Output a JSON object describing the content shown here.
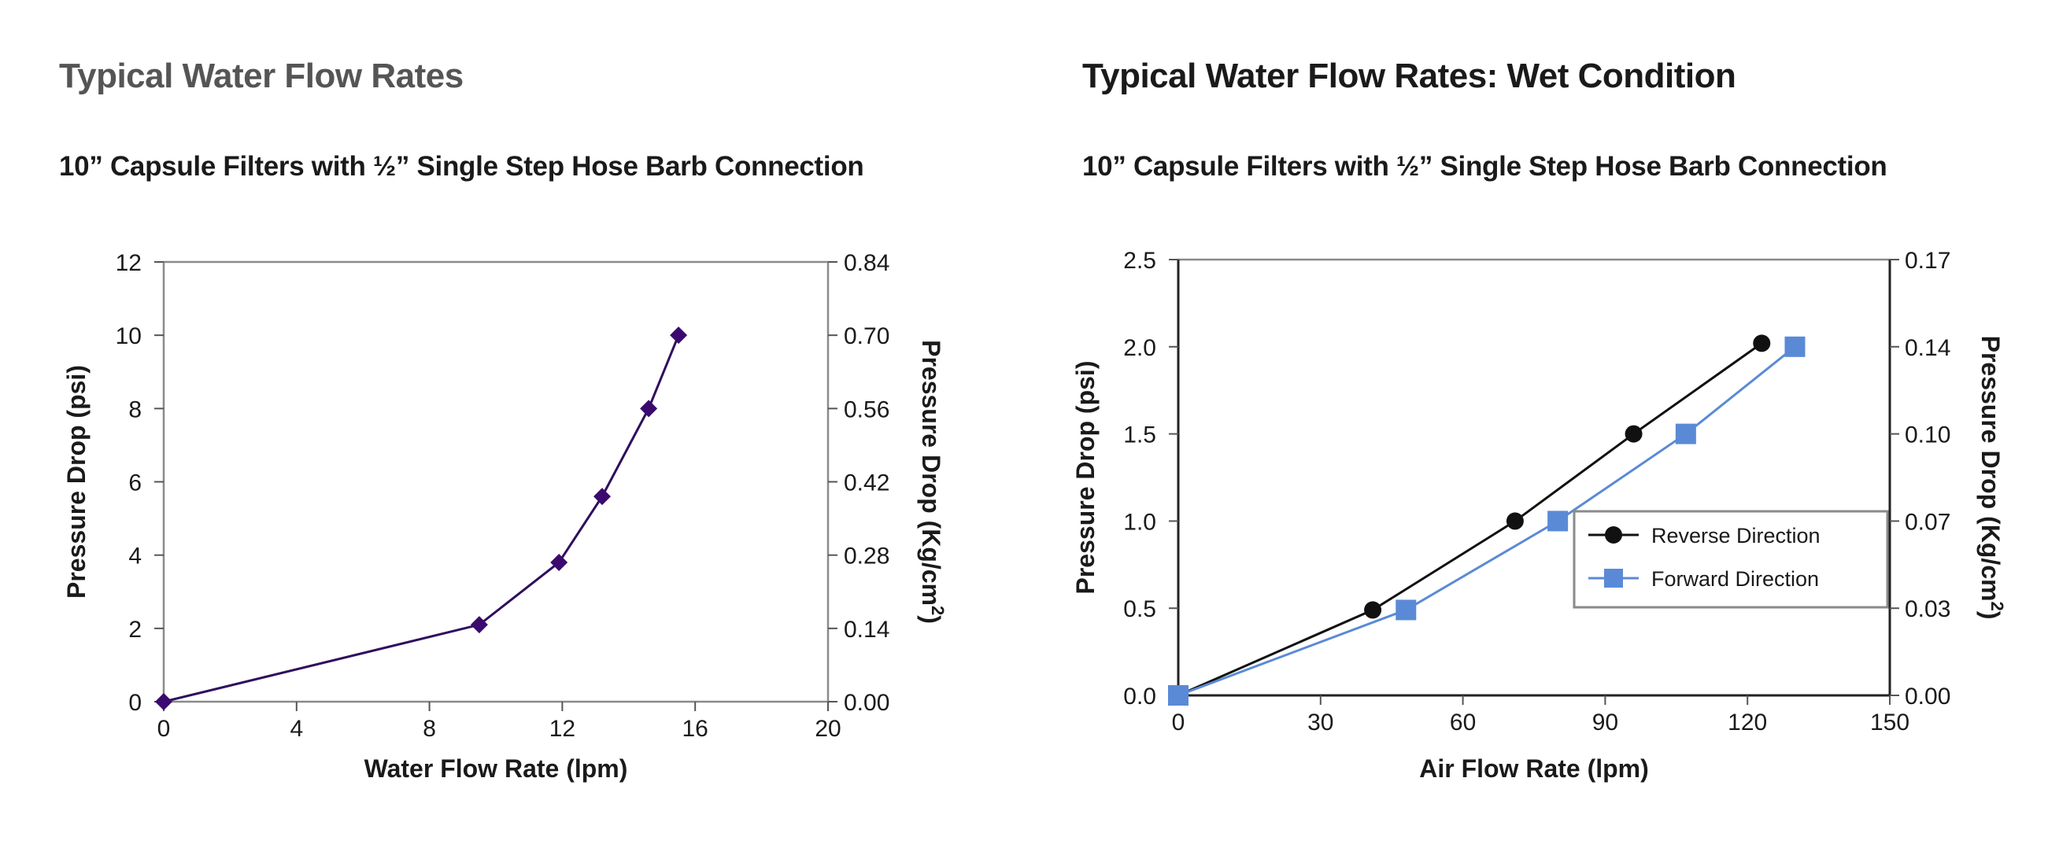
{
  "chart_data": [
    {
      "type": "line",
      "title": "Typical Water Flow Rates",
      "subtitle": "10” Capsule Filters with ½” Single Step Hose Barb Connection",
      "xlabel": "Water Flow Rate (lpm)",
      "ylabel": "Pressure Drop  (psi)",
      "y2label": "Pressure Drop (Kg/cm²)",
      "y2label_base": "Pressure Drop (Kg/cm",
      "y2label_sup": "2",
      "y2label_end": ")",
      "xlim": [
        0,
        20
      ],
      "ylim": [
        0,
        12
      ],
      "xticks": [
        "0",
        "4",
        "8",
        "12",
        "16",
        "20"
      ],
      "yticks": [
        "0",
        "2",
        "4",
        "6",
        "8",
        "10",
        "12"
      ],
      "y2ticks": [
        "0.00",
        "0.14",
        "0.28",
        "0.42",
        "0.56",
        "0.70",
        "0.84"
      ],
      "grid": false,
      "colors": {
        "line": "#2e0e5e",
        "marker": "#3b0a6e"
      },
      "series": [
        {
          "marker": "diamond",
          "x": [
            0,
            9.5,
            11.9,
            13.2,
            14.6,
            15.5
          ],
          "y": [
            0,
            2.1,
            3.8,
            5.6,
            8.0,
            10.0
          ]
        }
      ]
    },
    {
      "type": "line",
      "title": "Typical Water Flow Rates: Wet Condition",
      "subtitle": "10” Capsule Filters with ½” Single Step Hose Barb Connection",
      "xlabel": "Air Flow Rate (lpm)",
      "ylabel": "Pressure Drop (psi)",
      "y2label": "Pressure Drop (Kg/cm²)",
      "y2label_base": "Pressure Drop (Kg/cm",
      "y2label_sup": "2",
      "y2label_end": ")",
      "xlim": [
        0,
        150
      ],
      "ylim": [
        0,
        2.5
      ],
      "xticks": [
        "0",
        "30",
        "60",
        "90",
        "120",
        "150"
      ],
      "yticks": [
        "0.0",
        "0.5",
        "1.0",
        "1.5",
        "2.0",
        "2.5"
      ],
      "y2ticks": [
        "0.00",
        "0.03",
        "0.07",
        "0.10",
        "0.14",
        "0.17"
      ],
      "grid": false,
      "legend": "center-right",
      "series": [
        {
          "name": "Reverse Direction",
          "marker": "circle",
          "color": "#111111",
          "x": [
            0,
            41,
            71,
            96,
            123
          ],
          "y": [
            0,
            0.49,
            1.0,
            1.5,
            2.02
          ]
        },
        {
          "name": "Forward Direction",
          "marker": "square",
          "color": "#5a8ad6",
          "x": [
            0,
            48,
            80,
            107,
            130
          ],
          "y": [
            0,
            0.49,
            1.0,
            1.5,
            2.0
          ]
        }
      ]
    }
  ]
}
